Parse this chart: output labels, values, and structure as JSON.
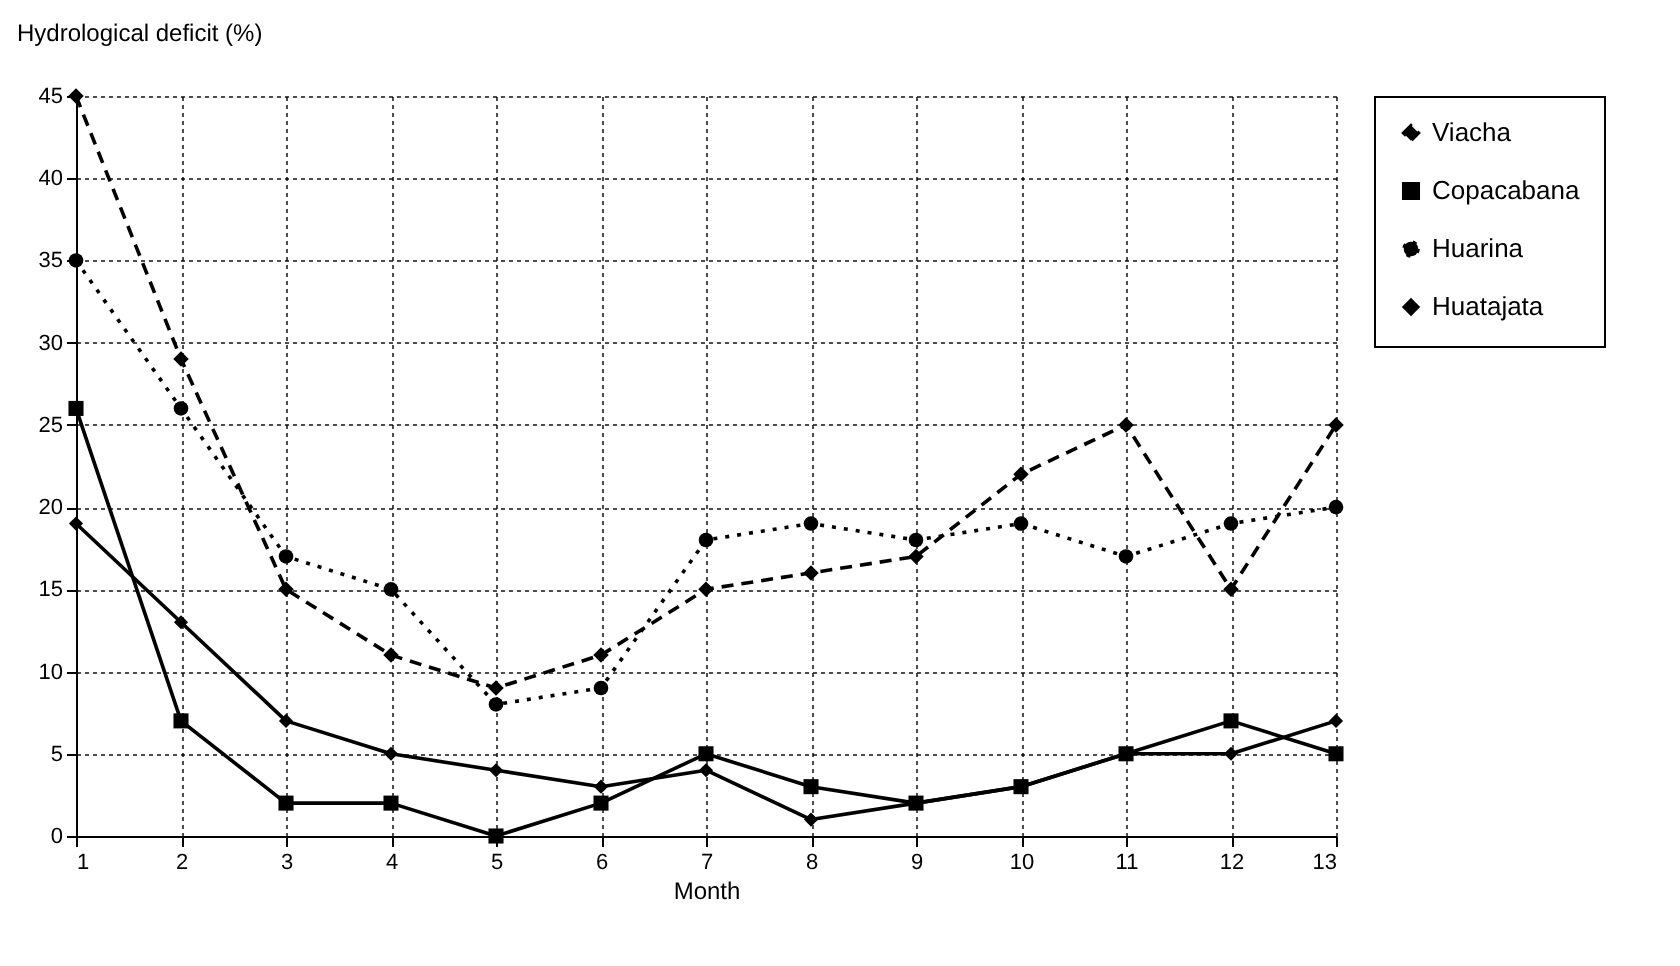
{
  "chart_data": {
    "type": "line",
    "ylabel": "Hydrological deficit (%)",
    "xlabel": "Month",
    "x": [
      1,
      2,
      3,
      4,
      5,
      6,
      7,
      8,
      9,
      10,
      11,
      12,
      13
    ],
    "series": [
      {
        "name": "Viacha",
        "color": "#000000",
        "marker": "diamond",
        "line_style": "dashed",
        "values": [
          45,
          29,
          15,
          11,
          9,
          11,
          15,
          16,
          17,
          22,
          25,
          15,
          25
        ]
      },
      {
        "name": "Copacabana",
        "color": "#000000",
        "marker": "square",
        "line_style": "solid",
        "values": [
          26,
          7,
          2,
          2,
          0,
          2,
          5,
          3,
          2,
          3,
          5,
          7,
          5
        ]
      },
      {
        "name": "Huarina",
        "color": "#000000",
        "marker": "circle",
        "line_style": "dotted",
        "values": [
          35,
          26,
          17,
          15,
          8,
          9,
          18,
          19,
          18,
          19,
          17,
          19,
          20
        ]
      },
      {
        "name": "Huatajata",
        "color": "#000000",
        "marker": "diamond",
        "line_style": "solid",
        "values": [
          19,
          13,
          7,
          5,
          4,
          3,
          4,
          1,
          2,
          3,
          5,
          5,
          7
        ]
      }
    ],
    "xlim": [
      1,
      13
    ],
    "xticks": [
      1,
      2,
      3,
      4,
      5,
      6,
      7,
      8,
      9,
      10,
      11,
      12,
      13
    ],
    "ylim": [
      0,
      45
    ],
    "yticks": [
      0,
      5,
      10,
      15,
      20,
      25,
      30,
      35,
      40,
      45
    ],
    "grid": true,
    "legend": "right"
  }
}
